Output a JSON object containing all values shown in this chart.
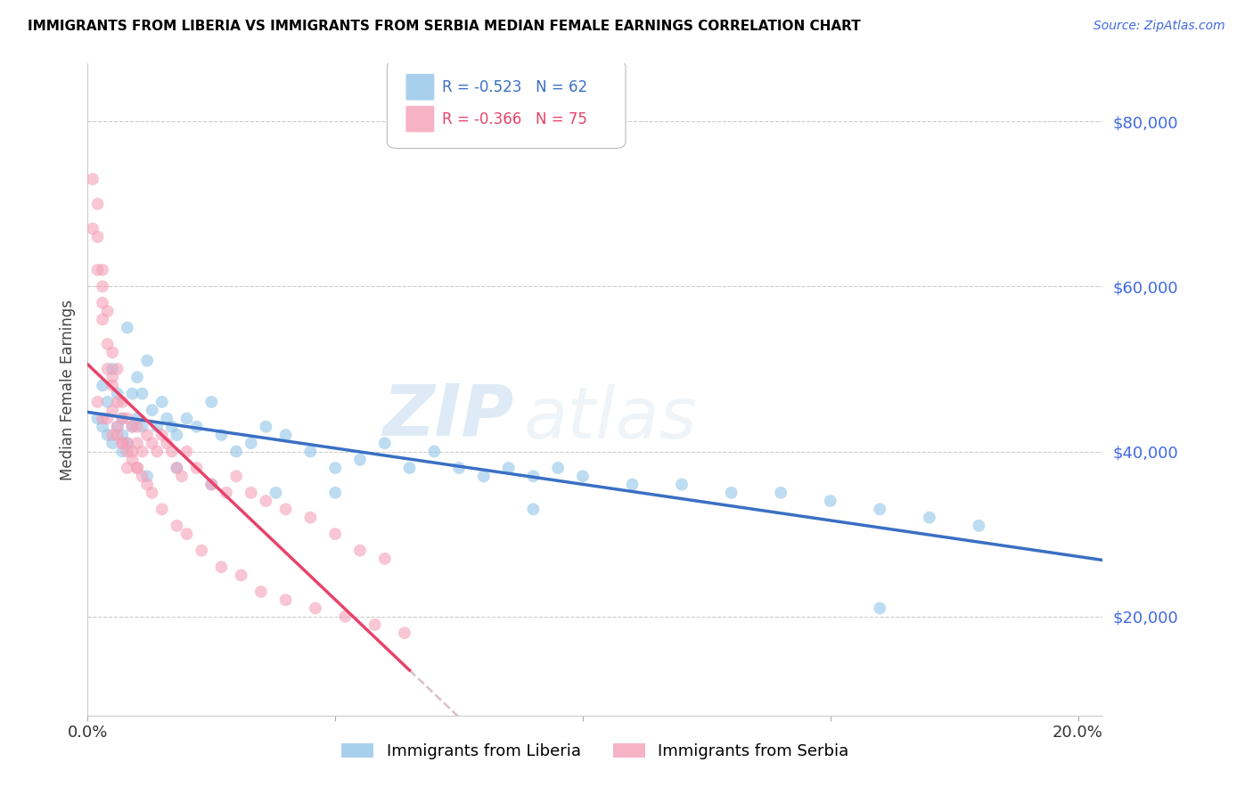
{
  "title": "IMMIGRANTS FROM LIBERIA VS IMMIGRANTS FROM SERBIA MEDIAN FEMALE EARNINGS CORRELATION CHART",
  "source": "Source: ZipAtlas.com",
  "ylabel": "Median Female Earnings",
  "legend_label1": "Immigrants from Liberia",
  "legend_label2": "Immigrants from Serbia",
  "R1": -0.523,
  "N1": 62,
  "R2": -0.366,
  "N2": 75,
  "color_liberia": "#92c5e8",
  "color_serbia": "#f4a0b8",
  "trendline_liberia": "#3a6fc4",
  "trendline_serbia": "#e8436a",
  "trendline_extended": "#d8c0c8",
  "xmin": 0.0,
  "xmax": 0.205,
  "ymin": 8000,
  "ymax": 87000,
  "ytick_vals": [
    20000,
    40000,
    60000,
    80000
  ],
  "xticks": [
    0.0,
    0.05,
    0.1,
    0.15,
    0.2
  ],
  "watermark_zip": "ZIP",
  "watermark_atlas": "atlas",
  "liberia_x": [
    0.002,
    0.003,
    0.003,
    0.004,
    0.004,
    0.005,
    0.005,
    0.006,
    0.006,
    0.007,
    0.007,
    0.008,
    0.008,
    0.009,
    0.009,
    0.01,
    0.01,
    0.011,
    0.011,
    0.012,
    0.013,
    0.014,
    0.015,
    0.016,
    0.017,
    0.018,
    0.02,
    0.022,
    0.025,
    0.027,
    0.03,
    0.033,
    0.036,
    0.04,
    0.045,
    0.05,
    0.055,
    0.06,
    0.065,
    0.07,
    0.075,
    0.08,
    0.085,
    0.09,
    0.095,
    0.1,
    0.11,
    0.12,
    0.13,
    0.14,
    0.15,
    0.16,
    0.17,
    0.18,
    0.007,
    0.012,
    0.018,
    0.025,
    0.038,
    0.05,
    0.09,
    0.16
  ],
  "liberia_y": [
    44000,
    43000,
    48000,
    42000,
    46000,
    41000,
    50000,
    43000,
    47000,
    42000,
    44000,
    55000,
    41000,
    43000,
    47000,
    44000,
    49000,
    43000,
    47000,
    51000,
    45000,
    43000,
    46000,
    44000,
    43000,
    42000,
    44000,
    43000,
    46000,
    42000,
    40000,
    41000,
    43000,
    42000,
    40000,
    38000,
    39000,
    41000,
    38000,
    40000,
    38000,
    37000,
    38000,
    37000,
    38000,
    37000,
    36000,
    36000,
    35000,
    35000,
    34000,
    33000,
    32000,
    31000,
    40000,
    37000,
    38000,
    36000,
    35000,
    35000,
    33000,
    21000
  ],
  "serbia_x": [
    0.001,
    0.001,
    0.002,
    0.002,
    0.002,
    0.003,
    0.003,
    0.003,
    0.003,
    0.004,
    0.004,
    0.004,
    0.005,
    0.005,
    0.005,
    0.005,
    0.006,
    0.006,
    0.006,
    0.007,
    0.007,
    0.007,
    0.008,
    0.008,
    0.008,
    0.009,
    0.009,
    0.01,
    0.01,
    0.01,
    0.011,
    0.012,
    0.013,
    0.014,
    0.015,
    0.016,
    0.017,
    0.018,
    0.019,
    0.02,
    0.022,
    0.025,
    0.028,
    0.03,
    0.033,
    0.036,
    0.04,
    0.045,
    0.05,
    0.055,
    0.06,
    0.002,
    0.003,
    0.004,
    0.005,
    0.006,
    0.007,
    0.008,
    0.009,
    0.01,
    0.011,
    0.012,
    0.013,
    0.015,
    0.018,
    0.02,
    0.023,
    0.027,
    0.031,
    0.035,
    0.04,
    0.046,
    0.052,
    0.058,
    0.064
  ],
  "serbia_y": [
    73000,
    67000,
    66000,
    70000,
    62000,
    60000,
    56000,
    62000,
    58000,
    53000,
    57000,
    50000,
    48000,
    52000,
    45000,
    49000,
    46000,
    50000,
    43000,
    46000,
    41000,
    44000,
    44000,
    41000,
    38000,
    43000,
    40000,
    43000,
    41000,
    38000,
    40000,
    42000,
    41000,
    40000,
    42000,
    41000,
    40000,
    38000,
    37000,
    40000,
    38000,
    36000,
    35000,
    37000,
    35000,
    34000,
    33000,
    32000,
    30000,
    28000,
    27000,
    46000,
    44000,
    44000,
    42000,
    42000,
    41000,
    40000,
    39000,
    38000,
    37000,
    36000,
    35000,
    33000,
    31000,
    30000,
    28000,
    26000,
    25000,
    23000,
    22000,
    21000,
    20000,
    19000,
    18000
  ]
}
